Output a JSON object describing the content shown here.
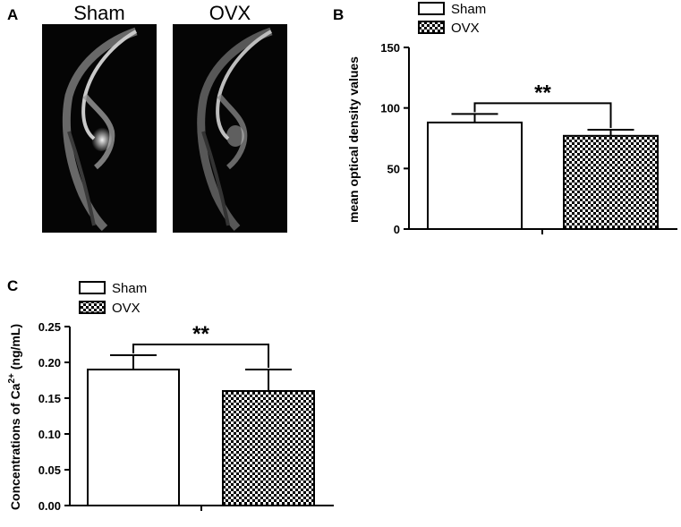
{
  "panel_a": {
    "letter": "A",
    "images": [
      {
        "label": "Sham"
      },
      {
        "label": "OVX"
      }
    ]
  },
  "chart_data": [
    {
      "panel": "B",
      "type": "bar",
      "categories": [
        "Sham",
        "OVX"
      ],
      "values": [
        88,
        77
      ],
      "errors": [
        7,
        5
      ],
      "ylabel": "mean optical density values",
      "ylim": [
        0,
        150
      ],
      "yticks": [
        "0",
        "50",
        "100",
        "150"
      ],
      "significance": "**",
      "legend": [
        "Sham",
        "OVX"
      ],
      "legend_position": "top",
      "grid": false
    },
    {
      "panel": "C",
      "type": "bar",
      "categories": [
        "Sham",
        "OVX"
      ],
      "values": [
        0.19,
        0.16
      ],
      "errors": [
        0.02,
        0.03
      ],
      "ylabel_prefix": "Concentrations of Ca",
      "ylabel_sup": "2+",
      "ylabel_suffix": " (ng/mL)",
      "ylim": [
        0,
        0.25
      ],
      "yticks": [
        "0.00",
        "0.05",
        "0.10",
        "0.15",
        "0.20",
        "0.25"
      ],
      "significance": "**",
      "legend": [
        "Sham",
        "OVX"
      ],
      "legend_position": "top-left",
      "grid": false
    }
  ]
}
